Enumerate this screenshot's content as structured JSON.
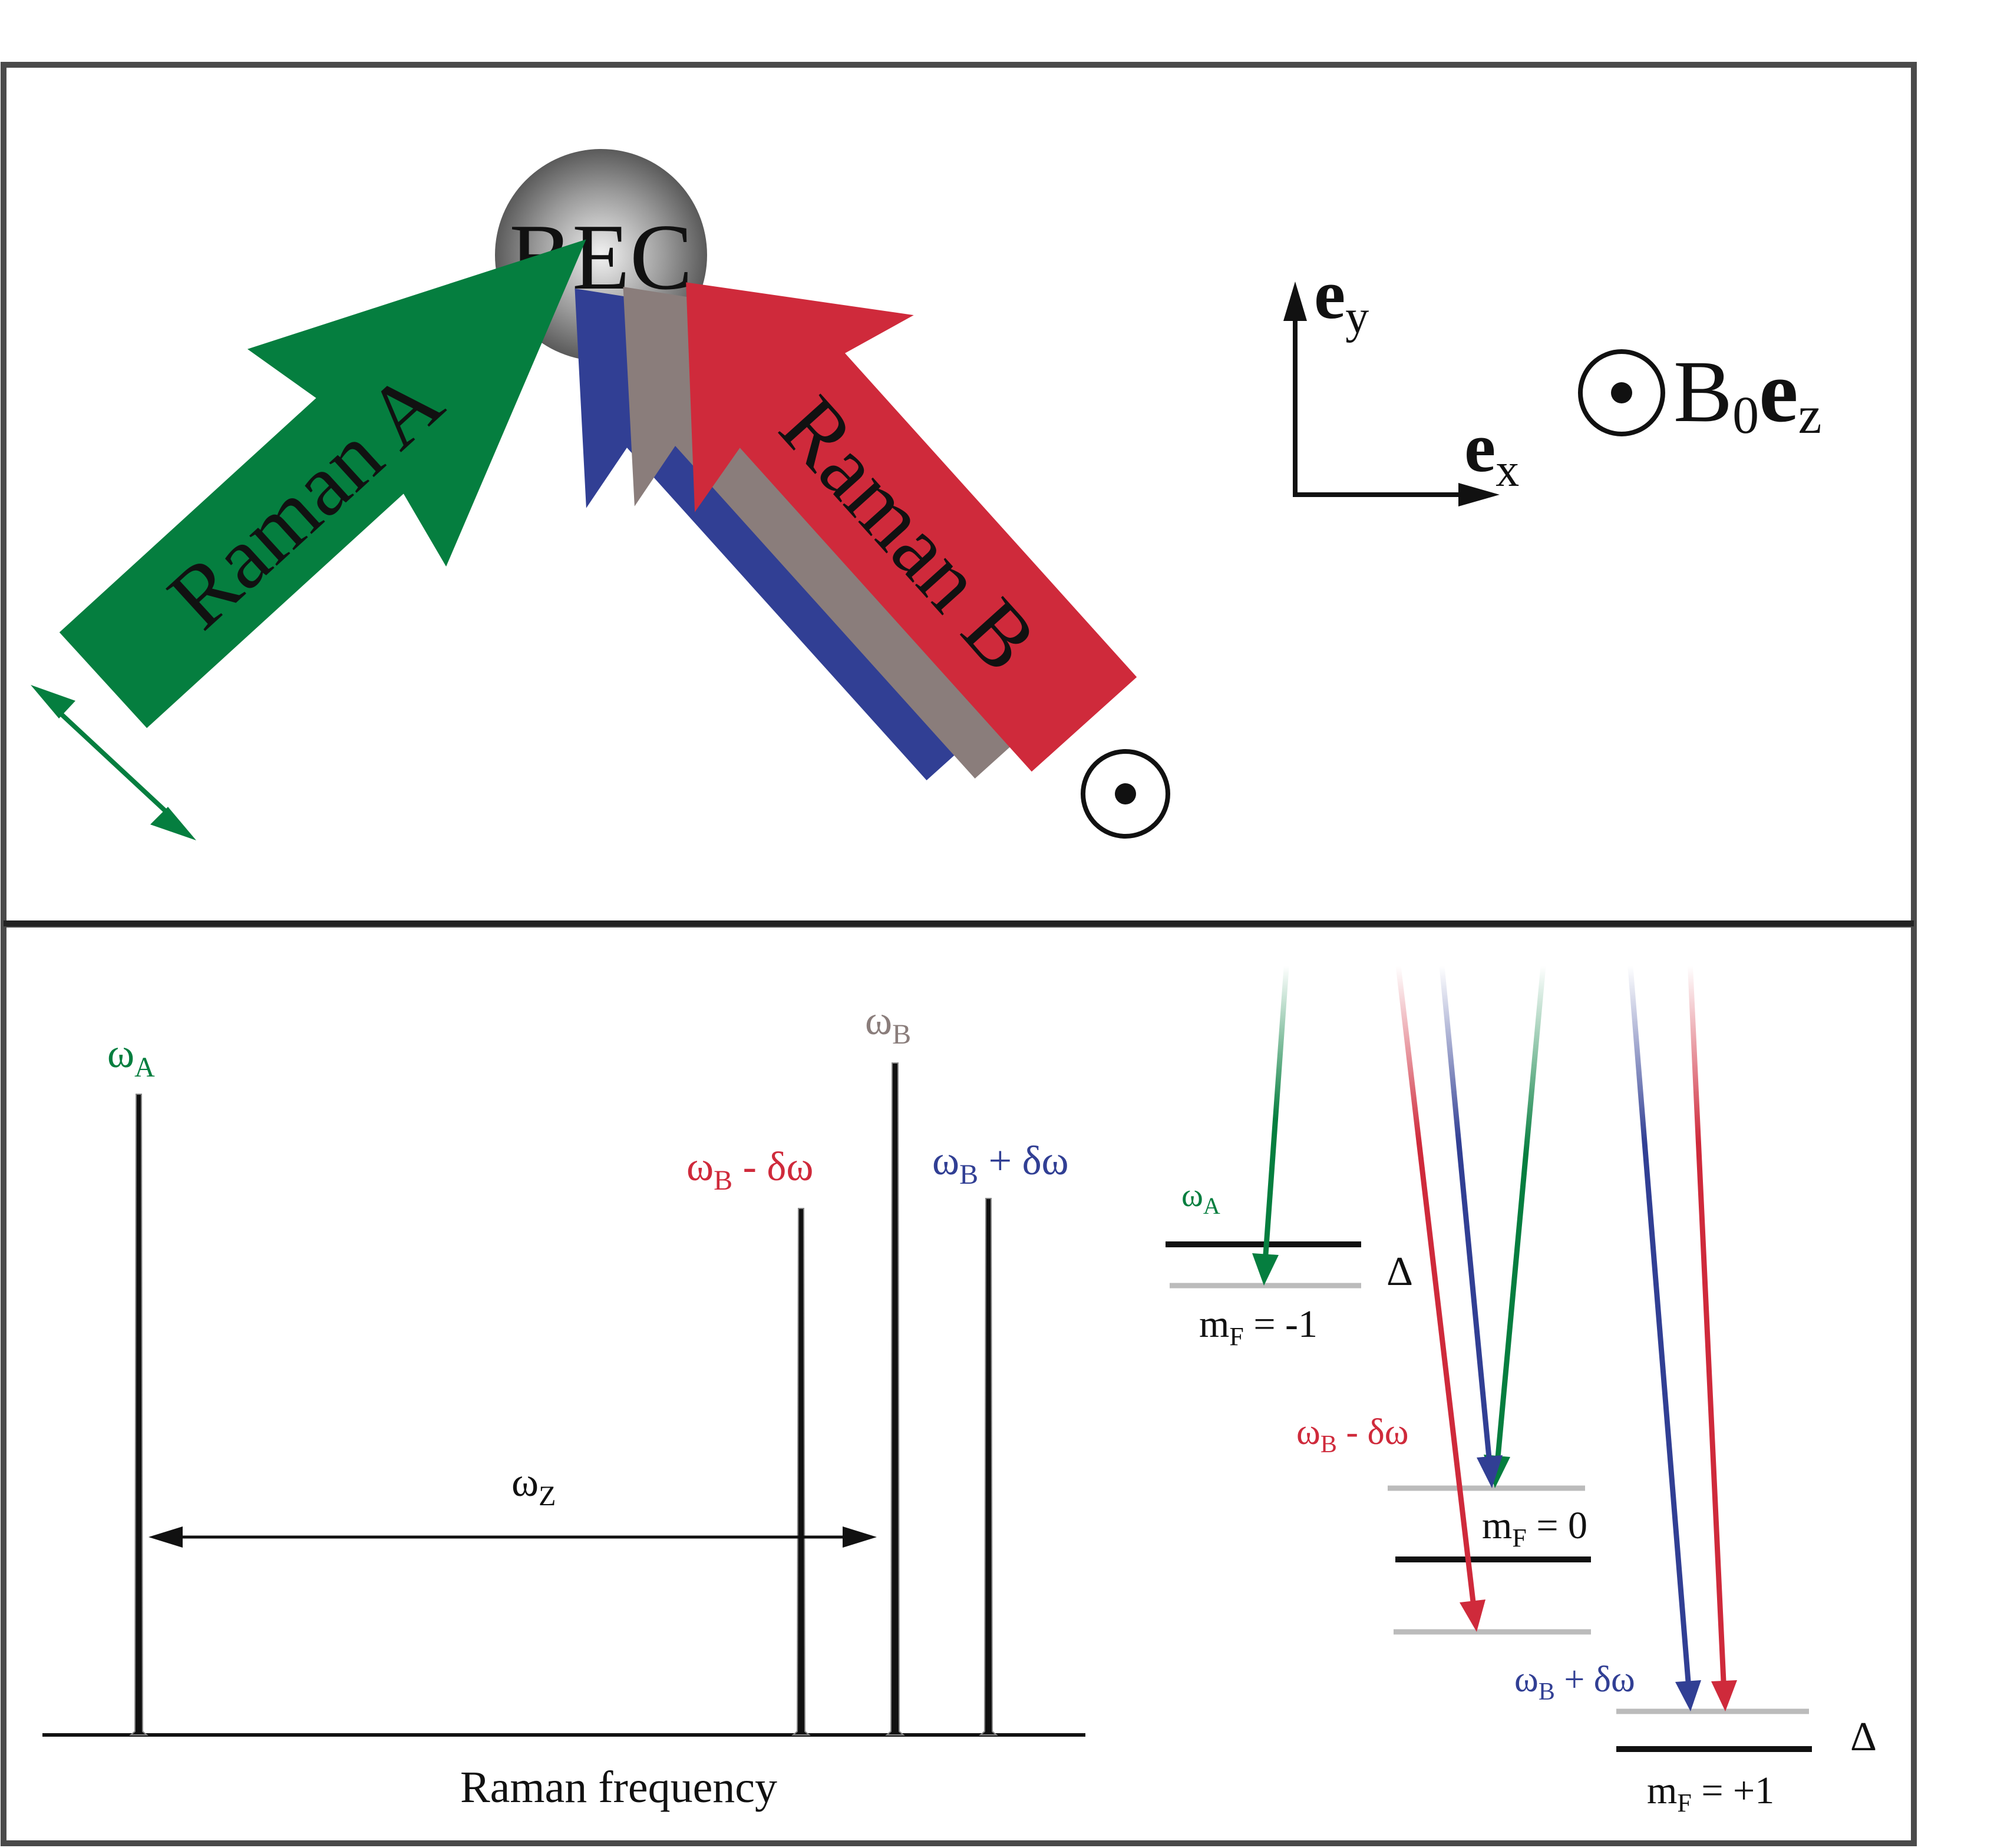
{
  "top_panel": {
    "bec_label": "BEC",
    "beam_a_label": "Raman A",
    "beam_b_label": "Raman B",
    "axis_y_label": "e",
    "axis_y_sub": "y",
    "axis_x_label": "e",
    "axis_x_sub": "x",
    "field_label_b": "B",
    "field_label_sub0": "0",
    "field_label_e": "e",
    "field_label_subz": "z"
  },
  "spectrum": {
    "xlabel": "Raman frequency",
    "peak_a": {
      "label": "ω",
      "sub": "A"
    },
    "peak_b": {
      "label": "ω",
      "sub": "B"
    },
    "peak_b_minus": {
      "label": "ω",
      "sub": "B",
      "suffix": " - δω"
    },
    "peak_b_plus": {
      "label": "ω",
      "sub": "B",
      "suffix": " + δω"
    },
    "span": {
      "label": "ω",
      "sub": "Z"
    }
  },
  "levels": {
    "label_wa": {
      "label": "ω",
      "sub": "A"
    },
    "label_wbm": {
      "label": "ω",
      "sub": "B",
      "suffix": " - δω"
    },
    "label_wbp": {
      "label": "ω",
      "sub": "B",
      "suffix": " + δω"
    },
    "mf_minus1": {
      "m": "m",
      "sub": "F",
      "rest": " = -1"
    },
    "mf_0": {
      "m": "m",
      "sub": "F",
      "rest": " = 0"
    },
    "mf_plus1": {
      "m": "m",
      "sub": "F",
      "rest": " = +1"
    },
    "delta_top": "Δ",
    "delta_bottom": "Δ"
  },
  "colors": {
    "green": "#057e3f",
    "red": "#cf2a3b",
    "blue": "#313f94",
    "gray": "#8a7d7b",
    "frame": "#4a4a4a"
  },
  "chart_data": {
    "type": "line",
    "xlabel": "Raman frequency",
    "series": [
      {
        "name": "ωA",
        "peak_height": 0.72
      },
      {
        "name": "ωB - δω",
        "peak_height": 0.59
      },
      {
        "name": "ωB",
        "peak_height": 0.76
      },
      {
        "name": "ωB + δω",
        "peak_height": 0.6
      }
    ]
  }
}
